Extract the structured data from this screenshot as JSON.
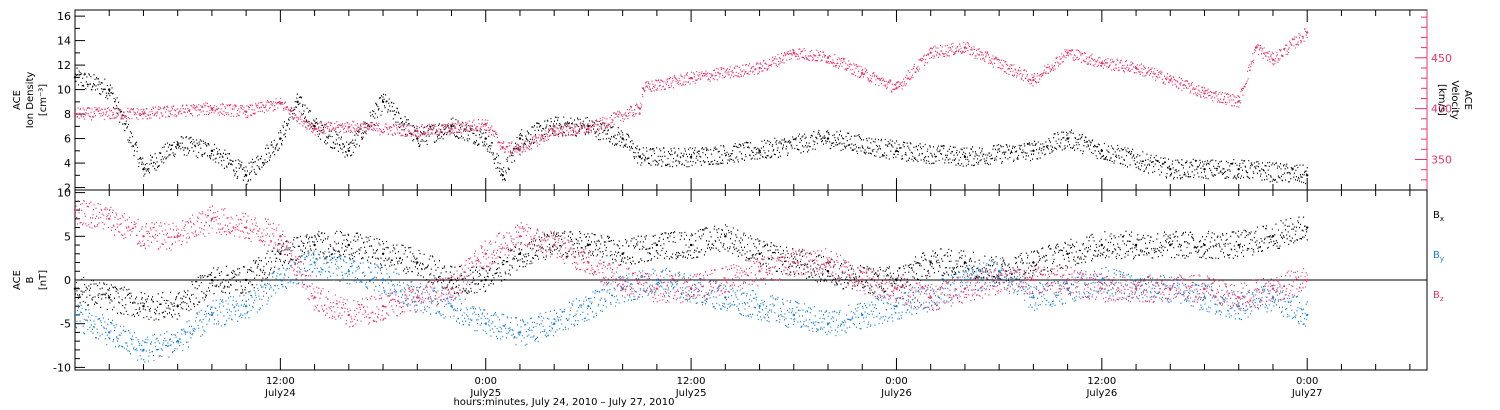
{
  "chart_data": [
    {
      "type": "scatter",
      "panel": "top",
      "title": "",
      "y_left": {
        "label_lines": [
          "ACE",
          "Ion Density",
          "[cm⁻³]"
        ],
        "ylim": [
          1.8,
          16.5
        ],
        "ticks": [
          "2",
          "4",
          "6",
          "8",
          "10",
          "12",
          "14",
          "16"
        ],
        "tick_values": [
          2,
          4,
          6,
          8,
          10,
          12,
          14,
          16
        ]
      },
      "y_right": {
        "label_lines": [
          "ACE",
          "Velocity",
          "[km/s]"
        ],
        "ylim": [
          320,
          497
        ],
        "ticks": [
          "350",
          "400",
          "450"
        ],
        "tick_values": [
          350,
          400,
          450
        ]
      },
      "series": [
        {
          "name": "Ion Density",
          "axis": "left",
          "color": "#000000",
          "x_hours": [
            0,
            2,
            4,
            6,
            8,
            10,
            12,
            13,
            14,
            16,
            18,
            20,
            22,
            24,
            25,
            26,
            28,
            30,
            32,
            33,
            36,
            40,
            44,
            48,
            52,
            56,
            58,
            60,
            64,
            66,
            68,
            72
          ],
          "values": [
            11,
            10,
            3.5,
            5.5,
            5,
            3,
            6,
            9,
            7,
            5,
            9,
            6,
            7,
            6,
            3,
            6,
            7,
            7,
            6,
            4.5,
            4.5,
            5,
            6,
            5,
            4.5,
            5,
            6,
            5,
            3.5,
            3.5,
            3.5,
            3
          ]
        },
        {
          "name": "Velocity",
          "axis": "right",
          "color": "#e8356b",
          "x_hours": [
            0,
            4,
            8,
            10,
            12,
            14,
            16,
            20,
            22,
            24,
            25,
            26,
            28,
            30,
            33,
            33.2,
            36,
            40,
            42,
            44,
            46,
            48,
            50,
            52,
            56,
            58,
            60,
            62,
            64,
            66,
            68,
            69,
            70,
            72
          ],
          "values": [
            395,
            395,
            400,
            397,
            405,
            380,
            382,
            378,
            380,
            385,
            362,
            360,
            378,
            380,
            400,
            420,
            430,
            440,
            455,
            450,
            435,
            420,
            455,
            460,
            428,
            455,
            445,
            440,
            428,
            415,
            407,
            460,
            448,
            475
          ]
        }
      ]
    },
    {
      "type": "scatter",
      "panel": "bottom",
      "title": "",
      "y_left": {
        "label_lines": [
          "ACE",
          "B",
          "[nT]"
        ],
        "ylim": [
          -10.3,
          10.3
        ],
        "ticks": [
          "-10",
          "-5",
          "0",
          "5",
          "10"
        ],
        "tick_values": [
          -10,
          -5,
          0,
          5,
          10
        ]
      },
      "zero_line": true,
      "series": [
        {
          "name": "Bx",
          "color": "#000000",
          "x_hours": [
            0,
            2,
            4,
            6,
            8,
            10,
            12,
            14,
            16,
            18,
            20,
            22,
            24,
            26,
            28,
            30,
            32,
            34,
            36,
            38,
            40,
            42,
            44,
            46,
            48,
            50,
            52,
            54,
            56,
            58,
            60,
            62,
            64,
            66,
            68,
            70,
            72
          ],
          "values": [
            -1,
            -2,
            -3,
            -3,
            0,
            0,
            3,
            4,
            4,
            3,
            2,
            0,
            0,
            3,
            4,
            4,
            3,
            4,
            4,
            5,
            3,
            2,
            1,
            0,
            0,
            2,
            2,
            1,
            2,
            3,
            4,
            4,
            4,
            4,
            4,
            5,
            6
          ]
        },
        {
          "name": "By",
          "color": "#1a7fd8",
          "x_hours": [
            0,
            2,
            4,
            6,
            8,
            10,
            12,
            14,
            16,
            18,
            20,
            22,
            24,
            26,
            28,
            30,
            32,
            34,
            36,
            38,
            40,
            42,
            44,
            46,
            48,
            50,
            52,
            54,
            56,
            58,
            60,
            62,
            64,
            66,
            68,
            70,
            72
          ],
          "values": [
            -4,
            -6,
            -8,
            -7,
            -4,
            -3,
            0,
            2,
            1,
            0,
            -2,
            -3,
            -5,
            -6,
            -5,
            -3,
            -1,
            0,
            -1,
            -2,
            -3,
            -4,
            -5,
            -4,
            -3,
            -2,
            0,
            1,
            -2,
            -1,
            0,
            -1,
            -1,
            -2,
            -3,
            -2,
            -4
          ]
        },
        {
          "name": "Bz",
          "color": "#e8356b",
          "x_hours": [
            0,
            2,
            4,
            6,
            8,
            10,
            12,
            14,
            16,
            18,
            20,
            22,
            24,
            26,
            28,
            30,
            32,
            34,
            36,
            38,
            40,
            42,
            44,
            46,
            48,
            50,
            52,
            54,
            56,
            58,
            60,
            62,
            64,
            66,
            68,
            70,
            72
          ],
          "values": [
            8,
            7,
            5,
            5,
            7,
            6,
            5,
            -2,
            -4,
            -3,
            -2,
            -1,
            3,
            5,
            4,
            2,
            0,
            -1,
            -1,
            0,
            1,
            2,
            2,
            0,
            -1,
            -2,
            -1,
            0,
            0,
            0,
            -1,
            -1,
            -1,
            -1,
            -2,
            -1,
            0
          ]
        }
      ],
      "legend": {
        "placement": "right",
        "entries": [
          {
            "label": "B",
            "sub": "x",
            "color": "#000000"
          },
          {
            "label": "B",
            "sub": "y",
            "color": "#1a7fd8"
          },
          {
            "label": "B",
            "sub": "z",
            "color": "#e8356b"
          }
        ]
      }
    }
  ],
  "x_axis": {
    "range_hours": [
      0,
      79
    ],
    "major_ticks": [
      {
        "hour": 12,
        "time": "12:00",
        "date": "July24"
      },
      {
        "hour": 24,
        "time": "0:00",
        "date": "July25"
      },
      {
        "hour": 36,
        "time": "12:00",
        "date": "July25"
      },
      {
        "hour": 48,
        "time": "0:00",
        "date": "July26"
      },
      {
        "hour": 60,
        "time": "12:00",
        "date": "July26"
      },
      {
        "hour": 72,
        "time": "0:00",
        "date": "July27"
      }
    ],
    "title": "hours:minutes, July 24, 2010 – July 27, 2010"
  }
}
